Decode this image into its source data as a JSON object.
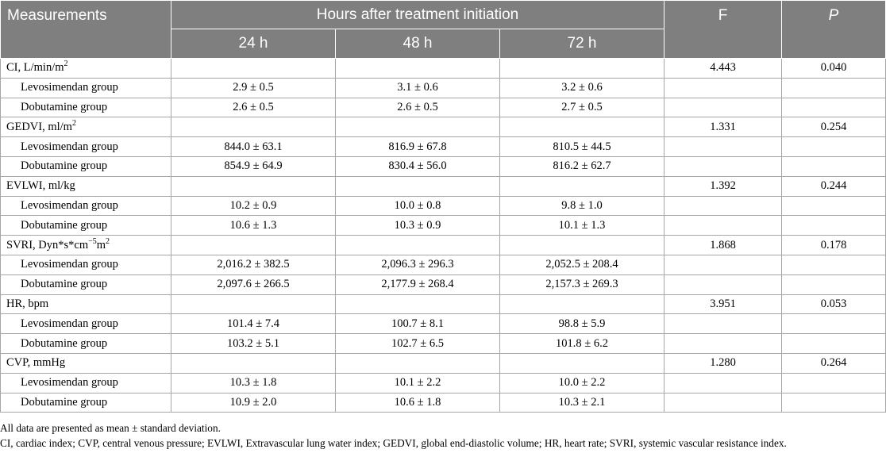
{
  "table": {
    "header": {
      "measurements": "Measurements",
      "group_title": "Hours after treatment initiation",
      "t24": "24 h",
      "t48": "48 h",
      "t72": "72 h",
      "f": "F",
      "p": "P"
    },
    "sections": [
      {
        "label": "CI, L/min/m",
        "label_sup": "2",
        "label_tail": "",
        "f": "4.443",
        "p": "0.040",
        "rows": [
          {
            "group": "Levosimendan group",
            "h24": "2.9 ± 0.5",
            "h48": "3.1 ± 0.6",
            "h72": "3.2 ± 0.6"
          },
          {
            "group": "Dobutamine group",
            "h24": "2.6 ± 0.5",
            "h48": "2.6 ± 0.5",
            "h72": "2.7 ± 0.5"
          }
        ]
      },
      {
        "label": "GEDVI, ml/m",
        "label_sup": "2",
        "label_tail": "",
        "f": "1.331",
        "p": "0.254",
        "rows": [
          {
            "group": "Levosimendan group",
            "h24": "844.0 ± 63.1",
            "h48": "816.9 ± 67.8",
            "h72": "810.5 ± 44.5"
          },
          {
            "group": "Dobutamine group",
            "h24": "854.9 ± 64.9",
            "h48": "830.4 ± 56.0",
            "h72": "816.2 ± 62.7"
          }
        ]
      },
      {
        "label": "EVLWI, ml/kg",
        "label_sup": "",
        "label_tail": "",
        "f": "1.392",
        "p": "0.244",
        "rows": [
          {
            "group": "Levosimendan group",
            "h24": "10.2 ± 0.9",
            "h48": "10.0 ± 0.8",
            "h72": "9.8 ± 1.0"
          },
          {
            "group": "Dobutamine group",
            "h24": "10.6 ± 1.3",
            "h48": "10.3 ± 0.9",
            "h72": "10.1 ± 1.3"
          }
        ]
      },
      {
        "label": "SVRI, Dyn*s*cm",
        "label_sup": "−5",
        "label_tail": "m",
        "label_sup2": "2",
        "f": "1.868",
        "p": "0.178",
        "rows": [
          {
            "group": "Levosimendan group",
            "h24": "2,016.2 ± 382.5",
            "h48": "2,096.3 ± 296.3",
            "h72": "2,052.5 ± 208.4"
          },
          {
            "group": "Dobutamine group",
            "h24": "2,097.6 ± 266.5",
            "h48": "2,177.9 ± 268.4",
            "h72": "2,157.3 ± 269.3"
          }
        ]
      },
      {
        "label": "HR, bpm",
        "label_sup": "",
        "label_tail": "",
        "f": "3.951",
        "p": "0.053",
        "rows": [
          {
            "group": "Levosimendan group",
            "h24": "101.4 ± 7.4",
            "h48": "100.7 ± 8.1",
            "h72": "98.8 ± 5.9"
          },
          {
            "group": "Dobutamine group",
            "h24": "103.2 ± 5.1",
            "h48": "102.7 ± 6.5",
            "h72": "101.8 ± 6.2"
          }
        ]
      },
      {
        "label": "CVP, mmHg",
        "label_sup": "",
        "label_tail": "",
        "f": "1.280",
        "p": "0.264",
        "rows": [
          {
            "group": "Levosimendan group",
            "h24": "10.3 ± 1.8",
            "h48": "10.1 ± 2.2",
            "h72": "10.0 ± 2.2"
          },
          {
            "group": "Dobutamine group",
            "h24": "10.9 ± 2.0",
            "h48": "10.6 ± 1.8",
            "h72": "10.3 ± 2.1"
          }
        ]
      }
    ]
  },
  "notes": {
    "line1": "All data are presented as mean ± standard deviation.",
    "line2": "CI, cardiac index; CVP, central venous pressure; EVLWI, Extravascular lung water index; GEDVI, global end-diastolic volume; HR, heart rate; SVRI, systemic vascular resistance index."
  },
  "colors": {
    "header_bg": "#7f7f7f",
    "header_text": "#ffffff",
    "grid": "#a6a6a6"
  }
}
